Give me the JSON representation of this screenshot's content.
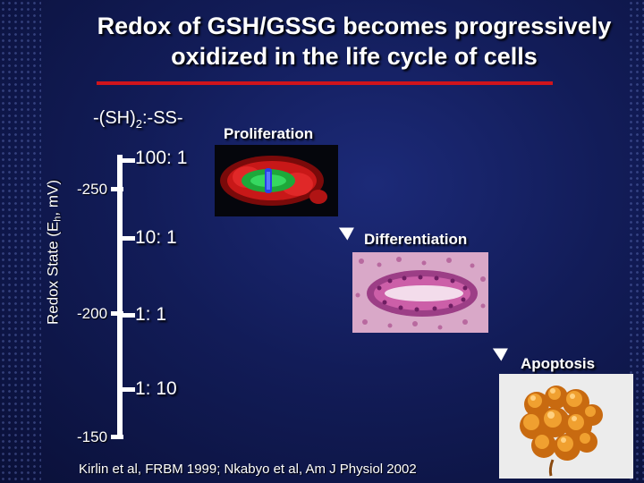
{
  "title": {
    "line1": "Redox of GSH/GSSG becomes progressively",
    "line2": "oxidized in the life cycle of cells"
  },
  "ratio_header": {
    "prefix": "-(SH)",
    "subscript": "2",
    "suffix": ":-SS-"
  },
  "axis": {
    "title_prefix": "Redox State (E",
    "title_sub": "h",
    "title_suffix": ", mV)",
    "ticks": [
      "-250",
      "-200",
      "-150"
    ]
  },
  "ratios": [
    "100: 1",
    "10: 1",
    "1: 1",
    "1: 10"
  ],
  "stages": {
    "proliferation": "Proliferation",
    "differentiation": "Differentiation",
    "apoptosis": "Apoptosis"
  },
  "images": {
    "proliferation": "dividing cell micrograph (green spindle, red cytoplasm)",
    "differentiation": "epithelial tissue micrograph (pink/purple)",
    "apoptosis": "apoptotic cell micrograph (orange blebbing cluster)"
  },
  "colors": {
    "background": "#121c58",
    "rule": "#d0141c",
    "text": "#ffffff"
  },
  "citation": "Kirlin et al, FRBM 1999; Nkabyo et al, Am J Physiol 2002"
}
